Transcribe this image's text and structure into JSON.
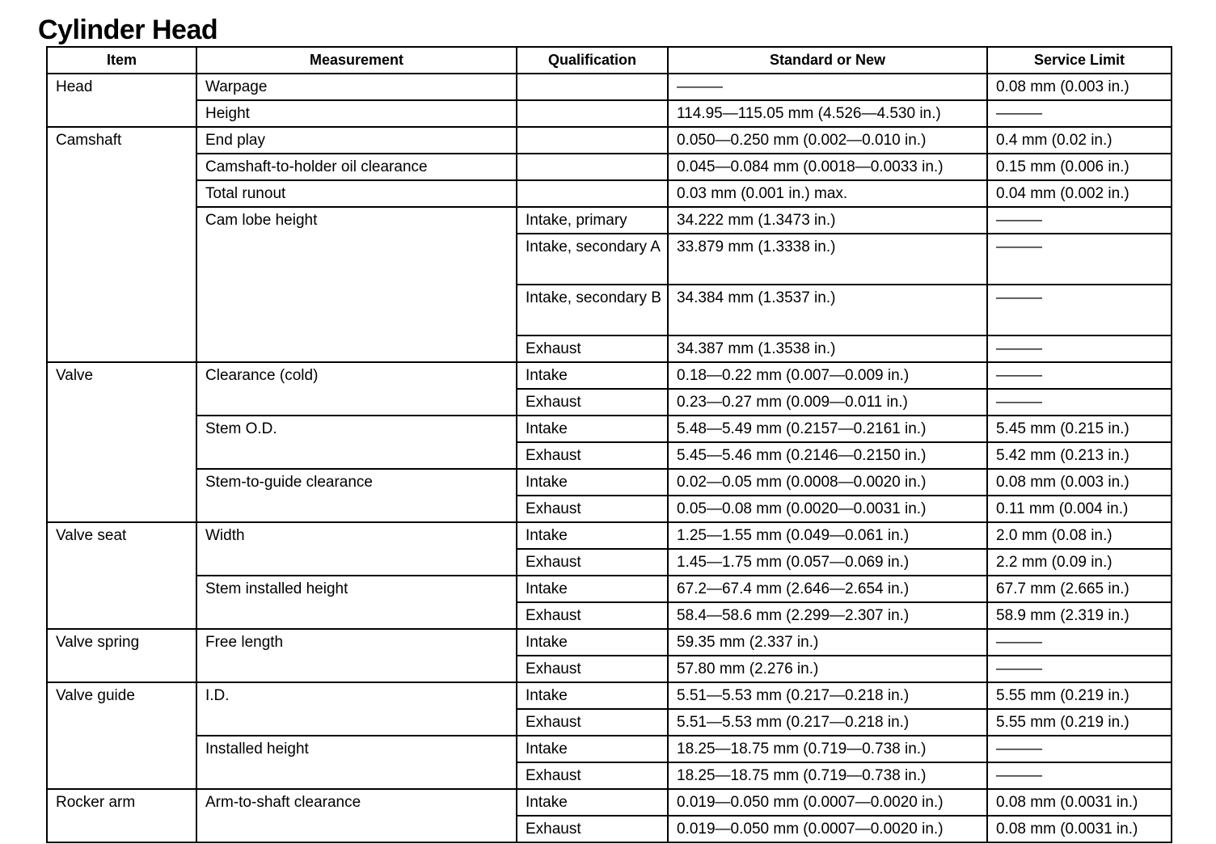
{
  "title": "Cylinder Head",
  "headers": [
    "Item",
    "Measurement",
    "Qualification",
    "Standard or New",
    "Service Limit"
  ],
  "items": [
    {
      "item": "Head",
      "measurements": [
        {
          "name": "Warpage",
          "rows": [
            {
              "q": "",
              "std": "———",
              "limit": "0.08 mm (0.003 in.)"
            }
          ]
        },
        {
          "name": "Height",
          "rows": [
            {
              "q": "",
              "std": "114.95—115.05 mm (4.526—4.530 in.)",
              "limit": "———"
            }
          ]
        }
      ]
    },
    {
      "item": "Camshaft",
      "measurements": [
        {
          "name": "End play",
          "rows": [
            {
              "q": "",
              "std": "0.050—0.250 mm (0.002—0.010 in.)",
              "limit": "0.4 mm (0.02 in.)"
            }
          ]
        },
        {
          "name": "Camshaft-to-holder oil clearance",
          "rows": [
            {
              "q": "",
              "std": "0.045—0.084 mm (0.0018—0.0033 in.)",
              "limit": "0.15 mm (0.006 in.)"
            }
          ]
        },
        {
          "name": "Total runout",
          "rows": [
            {
              "q": "",
              "std": "0.03 mm (0.001 in.) max.",
              "limit": "0.04 mm (0.002 in.)"
            }
          ]
        },
        {
          "name": "Cam lobe height",
          "rows": [
            {
              "q": "Intake, primary",
              "std": "34.222 mm (1.3473 in.)",
              "limit": "———"
            },
            {
              "q": "Intake, secondary A",
              "std": "33.879 mm (1.3338 in.)",
              "limit": "———",
              "double": true
            },
            {
              "q": "Intake, secondary B",
              "std": "34.384 mm (1.3537 in.)",
              "limit": "———",
              "double": true
            },
            {
              "q": "Exhaust",
              "std": "34.387 mm (1.3538 in.)",
              "limit": "———"
            }
          ]
        }
      ]
    },
    {
      "item": "Valve",
      "measurements": [
        {
          "name": "Clearance (cold)",
          "rows": [
            {
              "q": "Intake",
              "std": "0.18—0.22 mm (0.007—0.009 in.)",
              "limit": "———"
            },
            {
              "q": "Exhaust",
              "std": "0.23—0.27 mm (0.009—0.011 in.)",
              "limit": "———"
            }
          ]
        },
        {
          "name": "Stem O.D.",
          "rows": [
            {
              "q": "Intake",
              "std": "5.48—5.49 mm (0.2157—0.2161 in.)",
              "limit": "5.45 mm (0.215 in.)"
            },
            {
              "q": "Exhaust",
              "std": "5.45—5.46 mm (0.2146—0.2150 in.)",
              "limit": "5.42 mm (0.213 in.)"
            }
          ]
        },
        {
          "name": "Stem-to-guide clearance",
          "rows": [
            {
              "q": "Intake",
              "std": "0.02—0.05 mm (0.0008—0.0020 in.)",
              "limit": "0.08 mm (0.003 in.)"
            },
            {
              "q": "Exhaust",
              "std": "0.05—0.08 mm (0.0020—0.0031 in.)",
              "limit": "0.11 mm (0.004 in.)"
            }
          ]
        }
      ]
    },
    {
      "item": "Valve seat",
      "measurements": [
        {
          "name": "Width",
          "rows": [
            {
              "q": "Intake",
              "std": "1.25—1.55 mm (0.049—0.061 in.)",
              "limit": "2.0 mm (0.08 in.)"
            },
            {
              "q": "Exhaust",
              "std": "1.45—1.75 mm (0.057—0.069 in.)",
              "limit": "2.2 mm (0.09 in.)"
            }
          ]
        },
        {
          "name": "Stem installed height",
          "rows": [
            {
              "q": "Intake",
              "std": "67.2—67.4 mm (2.646—2.654 in.)",
              "limit": "67.7 mm (2.665 in.)"
            },
            {
              "q": "Exhaust",
              "std": "58.4—58.6 mm (2.299—2.307 in.)",
              "limit": "58.9 mm (2.319 in.)"
            }
          ]
        }
      ]
    },
    {
      "item": "Valve spring",
      "measurements": [
        {
          "name": "Free length",
          "rows": [
            {
              "q": "Intake",
              "std": "59.35 mm (2.337 in.)",
              "limit": "———"
            },
            {
              "q": "Exhaust",
              "std": "57.80 mm (2.276 in.)",
              "limit": "———"
            }
          ]
        }
      ]
    },
    {
      "item": "Valve guide",
      "measurements": [
        {
          "name": "I.D.",
          "rows": [
            {
              "q": "Intake",
              "std": "5.51—5.53 mm (0.217—0.218 in.)",
              "limit": "5.55 mm (0.219 in.)"
            },
            {
              "q": "Exhaust",
              "std": "5.51—5.53 mm (0.217—0.218 in.)",
              "limit": "5.55 mm (0.219 in.)"
            }
          ]
        },
        {
          "name": "Installed height",
          "rows": [
            {
              "q": "Intake",
              "std": "18.25—18.75 mm (0.719—0.738 in.)",
              "limit": "———"
            },
            {
              "q": "Exhaust",
              "std": "18.25—18.75 mm (0.719—0.738 in.)",
              "limit": "———"
            }
          ]
        }
      ]
    },
    {
      "item": "Rocker arm",
      "measurements": [
        {
          "name": "Arm-to-shaft clearance",
          "rows": [
            {
              "q": "Intake",
              "std": "0.019—0.050 mm (0.0007—0.0020 in.)",
              "limit": "0.08 mm (0.0031 in.)"
            },
            {
              "q": "Exhaust",
              "std": "0.019—0.050 mm (0.0007—0.0020 in.)",
              "limit": "0.08 mm (0.0031 in.)"
            }
          ]
        }
      ]
    }
  ]
}
